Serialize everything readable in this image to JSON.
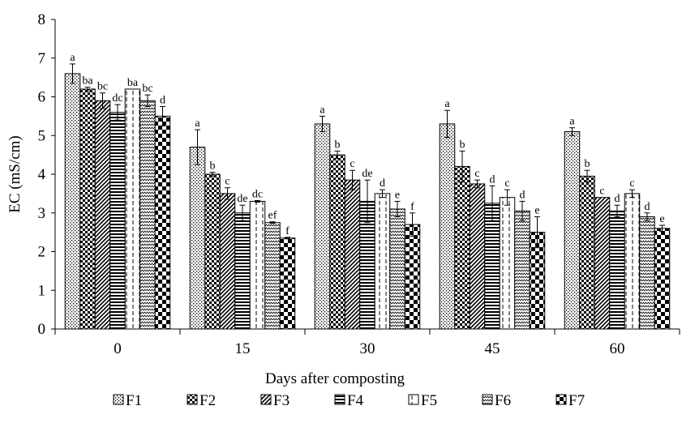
{
  "chart_data": {
    "type": "bar",
    "xlabel": "Days after composting",
    "ylabel": "EC (mS/cm)",
    "ylim": [
      0,
      8
    ],
    "yticks": [
      0,
      1,
      2,
      3,
      4,
      5,
      6,
      7,
      8
    ],
    "grid": false,
    "legend_position": "bottom",
    "categories": [
      "0",
      "15",
      "30",
      "45",
      "60"
    ],
    "series": [
      {
        "name": "F1",
        "pattern": "dots",
        "values": [
          6.6,
          4.7,
          5.3,
          5.3,
          5.1
        ],
        "errors": [
          0.25,
          0.45,
          0.2,
          0.35,
          0.1
        ],
        "letters": [
          "a",
          "a",
          "a",
          "a",
          "a"
        ]
      },
      {
        "name": "F2",
        "pattern": "checker",
        "values": [
          6.2,
          4.0,
          4.5,
          4.2,
          3.95
        ],
        "errors": [
          0.05,
          0.05,
          0.1,
          0.4,
          0.15
        ],
        "letters": [
          "ba",
          "b",
          "b",
          "b",
          "b"
        ]
      },
      {
        "name": "F3",
        "pattern": "diagonal",
        "values": [
          5.9,
          3.5,
          3.85,
          3.75,
          3.4
        ],
        "errors": [
          0.2,
          0.15,
          0.25,
          0.1,
          0.0
        ],
        "letters": [
          "bc",
          "c",
          "c",
          "c",
          "c"
        ]
      },
      {
        "name": "F4",
        "pattern": "horizontal",
        "values": [
          5.6,
          3.0,
          3.3,
          3.25,
          3.05
        ],
        "errors": [
          0.2,
          0.2,
          0.55,
          0.45,
          0.15
        ],
        "letters": [
          "dc",
          "de",
          "de",
          "d",
          "d"
        ]
      },
      {
        "name": "F5",
        "pattern": "vdash",
        "values": [
          6.2,
          3.3,
          3.5,
          3.4,
          3.5
        ],
        "errors": [
          0.0,
          0.02,
          0.1,
          0.2,
          0.1
        ],
        "letters": [
          "ba",
          "dc",
          "d",
          "c",
          "c"
        ]
      },
      {
        "name": "F6",
        "pattern": "zigzag",
        "values": [
          5.9,
          2.75,
          3.1,
          3.05,
          2.9
        ],
        "errors": [
          0.15,
          0.02,
          0.2,
          0.25,
          0.1
        ],
        "letters": [
          "bc",
          "ef",
          "e",
          "d",
          "d"
        ]
      },
      {
        "name": "F7",
        "pattern": "bigchecker",
        "values": [
          5.5,
          2.35,
          2.7,
          2.5,
          2.6
        ],
        "errors": [
          0.25,
          0.02,
          0.3,
          0.4,
          0.08
        ],
        "letters": [
          "d",
          "f",
          "f",
          "e",
          "e"
        ]
      }
    ]
  }
}
